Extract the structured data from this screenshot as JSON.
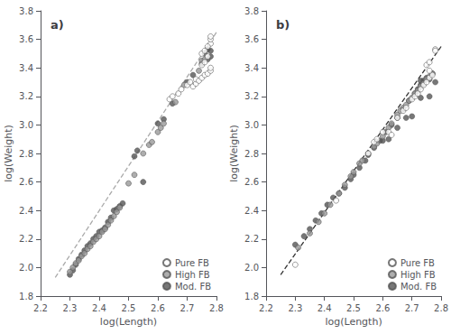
{
  "chart_data": [
    {
      "type": "scatter",
      "title": "a)",
      "xlabel": "log(Length)",
      "ylabel": "log(Weight)",
      "xlim": [
        2.2,
        2.8
      ],
      "ylim": [
        1.8,
        3.8
      ],
      "xticks": [
        2.2,
        2.3,
        2.4,
        2.5,
        2.6,
        2.7,
        2.8
      ],
      "yticks": [
        1.8,
        {
          "value": 2.0,
          "label": "2.0"
        },
        2.2,
        2.4,
        2.6,
        2.8,
        {
          "value": 3.0,
          "label": "3.0"
        },
        3.2,
        3.4,
        3.6,
        3.8
      ],
      "grid": false,
      "legend": "lower right",
      "series": [
        {
          "name": "Pure FB",
          "color": "white",
          "values": [
            [
              2.64,
              3.18
            ],
            [
              2.65,
              3.2
            ],
            [
              2.67,
              3.22
            ],
            [
              2.68,
              3.25
            ],
            [
              2.7,
              3.28
            ],
            [
              2.71,
              3.3
            ],
            [
              2.72,
              3.27
            ],
            [
              2.73,
              3.29
            ],
            [
              2.73,
              3.32
            ],
            [
              2.74,
              3.31
            ],
            [
              2.75,
              3.33
            ],
            [
              2.75,
              3.42
            ],
            [
              2.76,
              3.35
            ],
            [
              2.76,
              3.44
            ],
            [
              2.77,
              3.36
            ],
            [
              2.77,
              3.48
            ],
            [
              2.78,
              3.38
            ],
            [
              2.78,
              3.4
            ],
            [
              2.78,
              3.57
            ],
            [
              2.78,
              3.6
            ],
            [
              2.78,
              3.62
            ],
            [
              2.75,
              3.5
            ],
            [
              2.76,
              3.52
            ],
            [
              2.77,
              3.55
            ]
          ]
        },
        {
          "name": "High FB",
          "color": "#999999",
          "values": [
            [
              2.3,
              1.97
            ],
            [
              2.31,
              2.0
            ],
            [
              2.32,
              2.03
            ],
            [
              2.33,
              2.05
            ],
            [
              2.34,
              2.08
            ],
            [
              2.35,
              2.1
            ],
            [
              2.36,
              2.13
            ],
            [
              2.37,
              2.15
            ],
            [
              2.38,
              2.18
            ],
            [
              2.39,
              2.2
            ],
            [
              2.4,
              2.22
            ],
            [
              2.41,
              2.25
            ],
            [
              2.42,
              2.27
            ],
            [
              2.43,
              2.3
            ],
            [
              2.44,
              2.33
            ],
            [
              2.45,
              2.36
            ],
            [
              2.46,
              2.39
            ],
            [
              2.47,
              2.42
            ],
            [
              2.5,
              2.59
            ],
            [
              2.52,
              2.65
            ],
            [
              2.55,
              2.8
            ],
            [
              2.57,
              2.86
            ],
            [
              2.58,
              2.88
            ],
            [
              2.6,
              2.95
            ],
            [
              2.61,
              2.98
            ],
            [
              2.62,
              3.01
            ],
            [
              2.66,
              3.16
            ],
            [
              2.69,
              3.28
            ],
            [
              2.74,
              3.38
            ],
            [
              2.75,
              3.45
            ],
            [
              2.76,
              3.46
            ]
          ]
        },
        {
          "name": "Mod. FB",
          "color": "#555555",
          "values": [
            [
              2.3,
              1.95
            ],
            [
              2.31,
              1.98
            ],
            [
              2.32,
              2.02
            ],
            [
              2.33,
              2.06
            ],
            [
              2.34,
              2.09
            ],
            [
              2.35,
              2.12
            ],
            [
              2.36,
              2.15
            ],
            [
              2.37,
              2.17
            ],
            [
              2.38,
              2.2
            ],
            [
              2.39,
              2.22
            ],
            [
              2.4,
              2.25
            ],
            [
              2.41,
              2.26
            ],
            [
              2.42,
              2.28
            ],
            [
              2.43,
              2.32
            ],
            [
              2.44,
              2.35
            ],
            [
              2.45,
              2.4
            ],
            [
              2.46,
              2.41
            ],
            [
              2.47,
              2.43
            ],
            [
              2.48,
              2.45
            ],
            [
              2.52,
              2.78
            ],
            [
              2.53,
              2.82
            ],
            [
              2.55,
              2.6
            ],
            [
              2.6,
              3.01
            ],
            [
              2.62,
              3.04
            ],
            [
              2.65,
              3.15
            ],
            [
              2.7,
              3.3
            ],
            [
              2.72,
              3.35
            ],
            [
              2.75,
              3.43
            ],
            [
              2.77,
              3.46
            ],
            [
              2.78,
              3.48
            ],
            [
              2.78,
              3.52
            ],
            [
              2.77,
              3.53
            ],
            [
              2.76,
              3.5
            ]
          ]
        },
        {
          "type": "line",
          "line_style": "dashed",
          "color": "#aaaaaa",
          "values": [
            [
              2.25,
              1.93
            ],
            [
              2.8,
              3.65
            ]
          ]
        }
      ]
    },
    {
      "type": "scatter",
      "title": "b)",
      "xlabel": "log(Length)",
      "ylabel": "log(Weight)",
      "xlim": [
        2.2,
        2.8
      ],
      "ylim": [
        1.8,
        3.8
      ],
      "xticks": [
        2.2,
        2.3,
        2.4,
        2.5,
        2.6,
        2.7,
        2.8
      ],
      "yticks": [
        1.8,
        {
          "value": 2.0,
          "label": "2.0"
        },
        2.2,
        2.4,
        2.6,
        2.8,
        {
          "value": 3.0,
          "label": "3.0"
        },
        3.2,
        3.4,
        3.6,
        3.8
      ],
      "grid": false,
      "legend": "lower right",
      "series": [
        {
          "name": "Pure FB",
          "color": "white",
          "values": [
            [
              2.3,
              2.02
            ],
            [
              2.44,
              2.47
            ],
            [
              2.55,
              2.8
            ],
            [
              2.57,
              2.88
            ],
            [
              2.58,
              2.9
            ],
            [
              2.6,
              2.95
            ],
            [
              2.62,
              2.95
            ],
            [
              2.63,
              2.93
            ],
            [
              2.65,
              3.05
            ],
            [
              2.67,
              3.1
            ],
            [
              2.68,
              3.12
            ],
            [
              2.7,
              3.18
            ],
            [
              2.71,
              3.2
            ],
            [
              2.72,
              3.22
            ],
            [
              2.73,
              3.25
            ],
            [
              2.74,
              3.28
            ],
            [
              2.75,
              3.3
            ],
            [
              2.76,
              3.33
            ],
            [
              2.77,
              3.35
            ],
            [
              2.78,
              3.53
            ],
            [
              2.75,
              3.42
            ],
            [
              2.76,
              3.44
            ],
            [
              2.76,
              3.38
            ],
            [
              2.78,
              3.52
            ]
          ]
        },
        {
          "name": "High FB",
          "color": "#999999",
          "values": [
            [
              2.31,
              2.14
            ],
            [
              2.35,
              2.24
            ],
            [
              2.38,
              2.32
            ],
            [
              2.4,
              2.38
            ],
            [
              2.42,
              2.44
            ],
            [
              2.45,
              2.52
            ],
            [
              2.47,
              2.58
            ],
            [
              2.49,
              2.64
            ],
            [
              2.5,
              2.67
            ],
            [
              2.52,
              2.73
            ],
            [
              2.53,
              2.75
            ],
            [
              2.55,
              2.8
            ],
            [
              2.57,
              2.85
            ],
            [
              2.58,
              2.87
            ],
            [
              2.6,
              2.92
            ],
            [
              2.62,
              2.98
            ],
            [
              2.63,
              3.01
            ],
            [
              2.65,
              3.07
            ],
            [
              2.66,
              3.1
            ],
            [
              2.67,
              3.12
            ],
            [
              2.68,
              3.14
            ],
            [
              2.69,
              3.17
            ],
            [
              2.7,
              3.19
            ],
            [
              2.71,
              3.22
            ],
            [
              2.72,
              3.24
            ],
            [
              2.73,
              3.27
            ],
            [
              2.74,
              3.29
            ],
            [
              2.75,
              3.32
            ],
            [
              2.76,
              3.34
            ],
            [
              2.77,
              3.36
            ]
          ]
        },
        {
          "name": "Mod. FB",
          "color": "#555555",
          "values": [
            [
              2.3,
              2.16
            ],
            [
              2.33,
              2.22
            ],
            [
              2.35,
              2.27
            ],
            [
              2.37,
              2.33
            ],
            [
              2.39,
              2.38
            ],
            [
              2.41,
              2.44
            ],
            [
              2.43,
              2.49
            ],
            [
              2.45,
              2.52
            ],
            [
              2.47,
              2.56
            ],
            [
              2.49,
              2.62
            ],
            [
              2.5,
              2.65
            ],
            [
              2.52,
              2.7
            ],
            [
              2.54,
              2.75
            ],
            [
              2.55,
              2.79
            ],
            [
              2.57,
              2.84
            ],
            [
              2.59,
              2.89
            ],
            [
              2.61,
              2.95
            ],
            [
              2.63,
              3.0
            ],
            [
              2.65,
              3.05
            ],
            [
              2.67,
              3.11
            ],
            [
              2.69,
              3.17
            ],
            [
              2.71,
              3.22
            ],
            [
              2.72,
              3.25
            ],
            [
              2.73,
              3.28
            ],
            [
              2.73,
              3.31
            ],
            [
              2.74,
              3.31
            ],
            [
              2.75,
              3.33
            ],
            [
              2.76,
              3.32
            ],
            [
              2.76,
              3.2
            ],
            [
              2.77,
              3.36
            ],
            [
              2.78,
              3.3
            ],
            [
              2.73,
              3.19
            ],
            [
              2.7,
              3.06
            ],
            [
              2.68,
              3.05
            ],
            [
              2.65,
              2.98
            ],
            [
              2.62,
              2.9
            ],
            [
              2.6,
              2.89
            ]
          ]
        },
        {
          "type": "line",
          "line_style": "dashed",
          "color": "#333333",
          "values": [
            [
              2.25,
              1.95
            ],
            [
              2.8,
              3.55
            ]
          ]
        }
      ]
    }
  ]
}
